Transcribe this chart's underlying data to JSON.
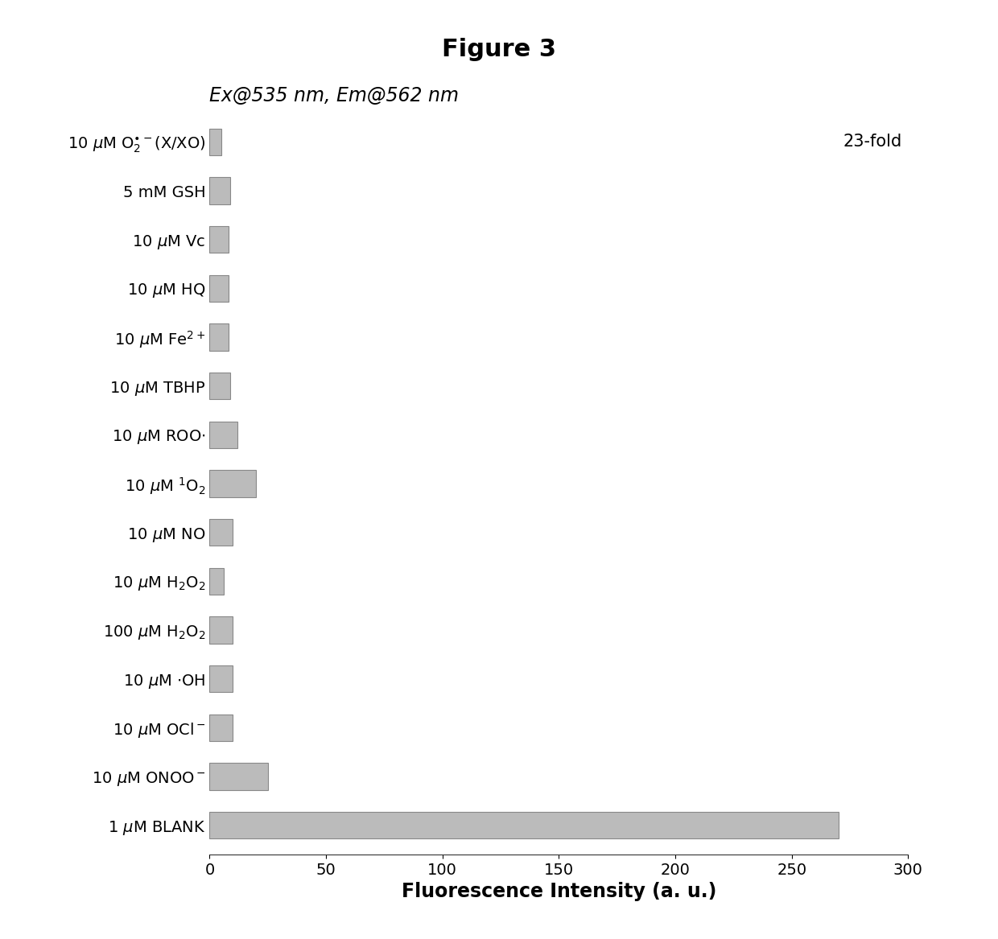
{
  "title": "Figure 3",
  "subtitle": "Ex@535 nm, Em@562 nm",
  "xlabel": "Fluorescence Intensity (a. u.)",
  "xlim": [
    0,
    300
  ],
  "xticks": [
    0,
    50,
    100,
    150,
    200,
    250,
    300
  ],
  "values": [
    270,
    25,
    10,
    10,
    10,
    6,
    10,
    20,
    12,
    9,
    8,
    8,
    8,
    9,
    5
  ],
  "bar_color": "#bbbbbb",
  "annotation_text": "23-fold",
  "background_color": "#ffffff",
  "title_fontsize": 22,
  "subtitle_fontsize": 17,
  "xlabel_fontsize": 17,
  "tick_fontsize": 14,
  "ylabel_fontsize": 14,
  "bar_height": 0.55
}
